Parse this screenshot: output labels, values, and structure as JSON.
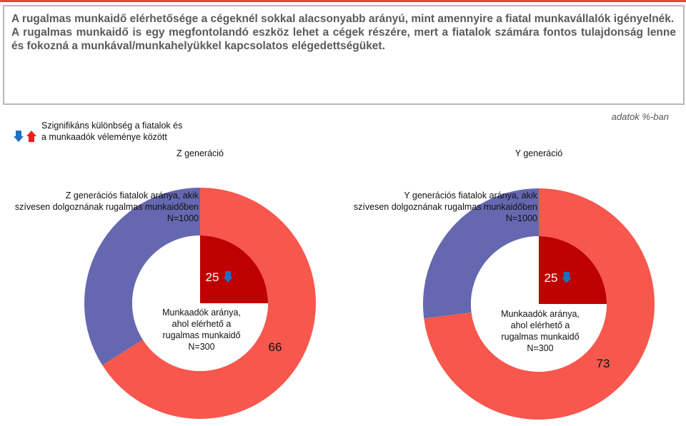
{
  "header": {
    "line1": "A rugalmas munkaidő elérhetősége a cégeknél sokkal alacsonyabb arányú, mint amennyire a fiatal munkavállalók igényelnék.",
    "line2": "A rugalmas munkaidő is egy megfontolandó eszköz lehet a cégek részére, mert a fiatalok számára fontos tulajdonság lenne és fokozná a munkával/munkahelyükkel kapcsolatos elégedettségüket."
  },
  "unit_note": "adatok %-ban",
  "legend": {
    "text": "Szignifikáns különbség a fiatalok és a munkaadók véleménye között",
    "icons": [
      "arrow-down-icon",
      "arrow-up-icon"
    ]
  },
  "colors": {
    "outer_value": "#f7574d",
    "outer_rest": "#6568b0",
    "inner_value": "#bf0000",
    "arrow_blue": "#1f6fc1",
    "arrow_red": "#e8201a",
    "accent_line": "#e8473f"
  },
  "chart_data": [
    {
      "type": "donut",
      "title": "Z generáció",
      "outer": {
        "label": "Z generációs fiatalok aránya, akik szívesen dolgoznának rugalmas munkaidőben\nN=1000",
        "value": 66
      },
      "inner": {
        "label": "Munkaadók aránya, ahol elérhető a rugalmas munkaidő\nN=300",
        "value": 25,
        "significance": "down"
      }
    },
    {
      "type": "donut",
      "title": "Y generáció",
      "outer": {
        "label": "Y generációs fiatalok aránya, akik szívesen dolgoznának rugalmas munkaidőben\nN=1000",
        "value": 73
      },
      "inner": {
        "label": "Munkaadók aránya, ahol elérhető a rugalmas munkaidő\nN=300",
        "value": 25,
        "significance": "down"
      }
    }
  ]
}
